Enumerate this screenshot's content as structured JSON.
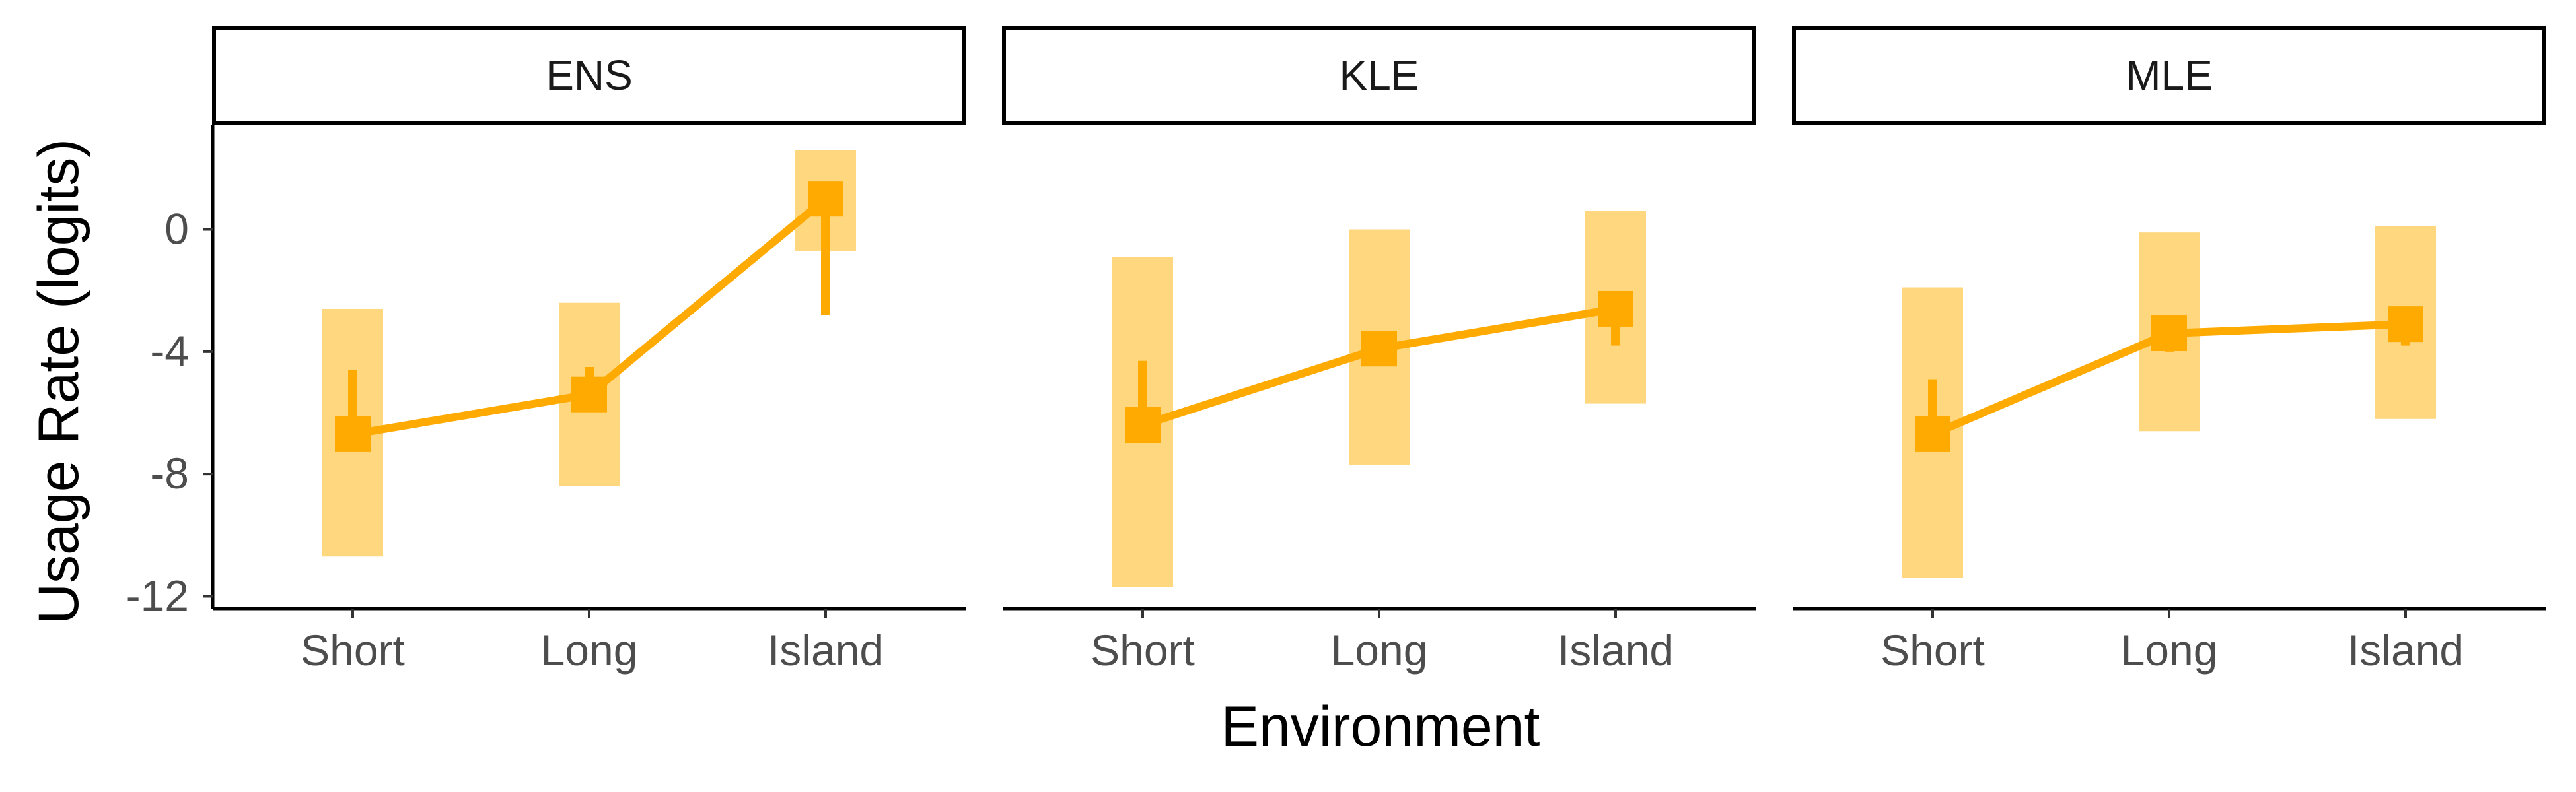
{
  "chart_data": {
    "type": "line",
    "facets": [
      "ENS",
      "KLE",
      "MLE"
    ],
    "categories": [
      "Short",
      "Long",
      "Island"
    ],
    "xlabel": "Environment",
    "ylabel": "Usage Rate (logits)",
    "ylim": [
      -12.4,
      3.4
    ],
    "yticks": [
      0,
      -4,
      -8,
      -12
    ],
    "ytick_labels": [
      "0",
      "-4",
      "-8",
      "-12"
    ],
    "grid": false,
    "color": "#FFAA00",
    "band_color": "#FFD77E",
    "panels": [
      {
        "facet": "ENS",
        "points": [
          {
            "x": "Short",
            "y": -6.7,
            "inner": [
              -6.7,
              -4.6
            ],
            "outer": [
              -10.7,
              -2.6
            ]
          },
          {
            "x": "Long",
            "y": -5.4,
            "inner": [
              -5.4,
              -4.5
            ],
            "outer": [
              -8.4,
              -2.4
            ]
          },
          {
            "x": "Island",
            "y": 1.0,
            "inner": [
              -2.8,
              1.0
            ],
            "outer": [
              -0.7,
              2.6
            ]
          }
        ]
      },
      {
        "facet": "KLE",
        "points": [
          {
            "x": "Short",
            "y": -6.4,
            "inner": [
              -6.4,
              -4.3
            ],
            "outer": [
              -11.7,
              -0.9
            ]
          },
          {
            "x": "Long",
            "y": -3.9,
            "inner": [
              -3.9,
              -3.9
            ],
            "outer": [
              -7.7,
              0.0
            ]
          },
          {
            "x": "Island",
            "y": -2.6,
            "inner": [
              -3.8,
              -2.6
            ],
            "outer": [
              -5.7,
              0.6
            ]
          }
        ]
      },
      {
        "facet": "MLE",
        "points": [
          {
            "x": "Short",
            "y": -6.7,
            "inner": [
              -6.7,
              -4.9
            ],
            "outer": [
              -11.4,
              -1.9
            ]
          },
          {
            "x": "Long",
            "y": -3.4,
            "inner": [
              -4.0,
              -3.4
            ],
            "outer": [
              -6.6,
              -0.1
            ]
          },
          {
            "x": "Island",
            "y": -3.1,
            "inner": [
              -3.8,
              -3.1
            ],
            "outer": [
              -6.2,
              0.1
            ]
          }
        ]
      }
    ]
  }
}
